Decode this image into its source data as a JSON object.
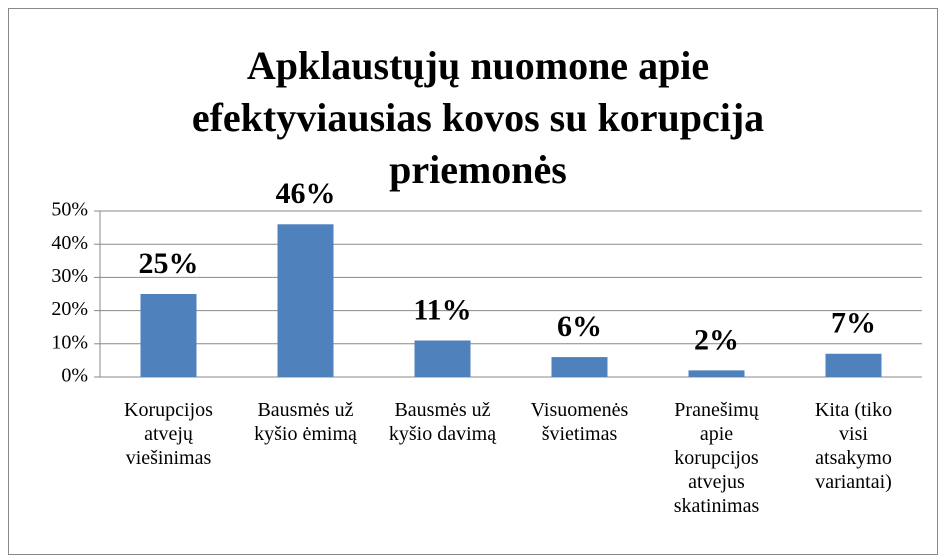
{
  "chart_data": {
    "type": "bar",
    "title": [
      "Apklaustųjų nuomone apie",
      "efektyviausias kovos su korupcija",
      "priemonės"
    ],
    "categories": [
      "Korupcijos atvejų viešinimas",
      "Bausmės už kyšio ėmimą",
      "Bausmės už kyšio davimą",
      "Visuomenės švietimas",
      "Pranešimų apie korupcijos atvejus skatinimas",
      "Kita (tiko visi atsakymo variantai)"
    ],
    "values": [
      25,
      46,
      11,
      6,
      2,
      7
    ],
    "value_labels": [
      "25%",
      "46%",
      "11%",
      "6%",
      "2%",
      "7%"
    ],
    "color": "#4f81bd",
    "ylim": [
      0,
      50
    ],
    "yticks": [
      {
        "value": 0,
        "label": "0%"
      },
      {
        "value": 10,
        "label": "10%"
      },
      {
        "value": 20,
        "label": "20%"
      },
      {
        "value": 30,
        "label": "30%"
      },
      {
        "value": 40,
        "label": "40%"
      },
      {
        "value": 50,
        "label": "50%"
      }
    ],
    "grid": true
  }
}
